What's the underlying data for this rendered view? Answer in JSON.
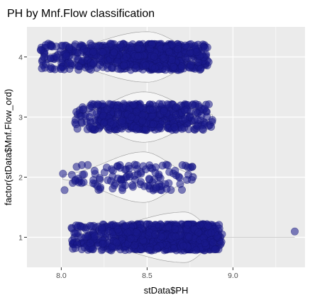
{
  "chart_data": {
    "type": "scatter",
    "subtype": "jittered points over violins",
    "title": "PH by Mnf.Flow classification",
    "xlabel": "stData$PH",
    "ylabel": "factor(stData$Mnf.Flow_ord)",
    "categories": [
      "1",
      "2",
      "3",
      "4"
    ],
    "xlim": [
      7.8,
      9.42
    ],
    "xticks": [
      8.0,
      8.5,
      9.0
    ],
    "xtick_labels": [
      "8.0",
      "8.5",
      "9.0"
    ],
    "grid": true,
    "legend": "none",
    "point_color": "#1a1a8c",
    "point_opacity": 0.55,
    "groups": [
      {
        "category": "1",
        "x_range": [
          8.06,
          8.94
        ],
        "mode": 8.72,
        "outliers": [
          9.36
        ],
        "n_points": 1050
      },
      {
        "category": "2",
        "x_range": [
          8.01,
          8.78
        ],
        "mode": 8.48,
        "outliers": [
          8.01,
          8.76
        ],
        "n_points": 120
      },
      {
        "category": "3",
        "x_range": [
          8.08,
          8.88
        ],
        "mode": 8.48,
        "outliers": [
          8.88
        ],
        "n_points": 520
      },
      {
        "category": "4",
        "x_range": [
          7.88,
          8.86
        ],
        "mode": 8.5,
        "outliers": [
          7.88,
          7.9
        ],
        "n_points": 760
      }
    ]
  }
}
